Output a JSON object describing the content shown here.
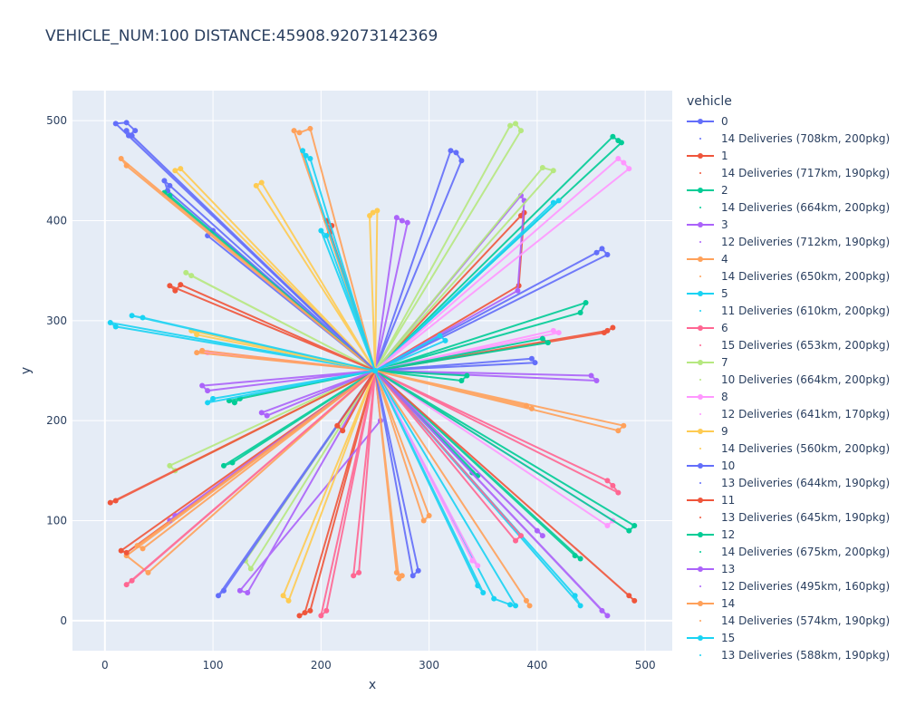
{
  "chart_data": {
    "type": "line",
    "title": "VEHICLE_NUM:100 DISTANCE:45908.92073142369",
    "xlabel": "x",
    "ylabel": "y",
    "xlim": [
      -30,
      525
    ],
    "ylim": [
      -30,
      530
    ],
    "xticks": [
      0,
      100,
      200,
      300,
      400,
      500
    ],
    "yticks": [
      0,
      100,
      200,
      300,
      400,
      500
    ],
    "depot": [
      250,
      250
    ],
    "legend_title": "vehicle",
    "legend_position": "right",
    "colors": [
      "#636efa",
      "#EF553B",
      "#00cc96",
      "#ab63fa",
      "#FFA15A",
      "#19d3f3",
      "#FF6692",
      "#B6E880",
      "#FF97FF",
      "#FECB52"
    ],
    "series": [
      {
        "name": "0",
        "legend": "14 Deliveries (708km, 200pkg)",
        "color": "#636efa",
        "x": [
          250,
          10,
          20,
          28,
          22,
          250,
          60,
          55,
          58,
          250,
          100,
          95,
          250,
          320,
          325,
          330,
          250
        ],
        "y": [
          250,
          497,
          498,
          490,
          485,
          250,
          435,
          440,
          430,
          250,
          390,
          385,
          250,
          470,
          468,
          460,
          250
        ]
      },
      {
        "name": "1",
        "legend": "14 Deliveries (717km, 190pkg)",
        "color": "#EF553B",
        "x": [
          250,
          185,
          180,
          190,
          250,
          205,
          210,
          208,
          250,
          385,
          388,
          383,
          250,
          465,
          470,
          462,
          250
        ],
        "y": [
          250,
          8,
          5,
          10,
          250,
          400,
          395,
          388,
          250,
          405,
          408,
          335,
          250,
          290,
          293,
          288,
          250
        ]
      },
      {
        "name": "2",
        "legend": "14 Deliveries (664km, 200pkg)",
        "color": "#00cc96",
        "x": [
          250,
          470,
          475,
          478,
          250,
          55,
          60,
          250,
          115,
          120,
          125,
          250,
          445,
          440,
          250,
          440,
          435,
          250
        ],
        "y": [
          250,
          484,
          480,
          478,
          250,
          428,
          425,
          250,
          220,
          218,
          222,
          250,
          318,
          308,
          250,
          62,
          65,
          250
        ]
      },
      {
        "name": "3",
        "legend": "12 Deliveries (712km, 190pkg)",
        "color": "#ab63fa",
        "x": [
          250,
          270,
          275,
          280,
          250,
          385,
          388,
          382,
          250,
          90,
          95,
          250,
          450,
          455,
          250,
          255,
          125,
          132,
          250
        ],
        "y": [
          250,
          403,
          400,
          398,
          250,
          425,
          420,
          330,
          250,
          235,
          230,
          250,
          245,
          240,
          250,
          200,
          30,
          28,
          250
        ]
      },
      {
        "name": "4",
        "legend": "14 Deliveries (650km, 200pkg)",
        "color": "#FFA15A",
        "x": [
          250,
          175,
          180,
          190,
          250,
          15,
          20,
          250,
          270,
          275,
          272,
          250,
          390,
          393,
          250,
          20,
          40,
          250
        ],
        "y": [
          250,
          490,
          488,
          492,
          250,
          462,
          455,
          250,
          48,
          45,
          42,
          250,
          20,
          15,
          250,
          65,
          48,
          250
        ]
      },
      {
        "name": "5",
        "legend": "11 Deliveries (610km, 200pkg)",
        "color": "#19d3f3",
        "x": [
          250,
          183,
          186,
          190,
          250,
          5,
          10,
          250,
          415,
          420,
          250,
          360,
          375,
          380,
          250,
          435,
          440,
          250
        ],
        "y": [
          250,
          470,
          465,
          462,
          250,
          298,
          294,
          250,
          418,
          420,
          250,
          22,
          16,
          15,
          250,
          25,
          15,
          250
        ]
      },
      {
        "name": "6",
        "legend": "15 Deliveries (653km, 200pkg)",
        "color": "#FF6692",
        "x": [
          250,
          205,
          200,
          250,
          230,
          235,
          250,
          465,
          470,
          475,
          250,
          25,
          20,
          250,
          380,
          385,
          250
        ],
        "y": [
          250,
          10,
          5,
          250,
          45,
          48,
          250,
          140,
          135,
          128,
          250,
          40,
          36,
          250,
          80,
          85,
          250
        ]
      },
      {
        "name": "7",
        "legend": "10 Deliveries (664km, 200pkg)",
        "color": "#B6E880",
        "x": [
          250,
          375,
          380,
          385,
          250,
          75,
          80,
          250,
          405,
          415,
          250,
          60,
          65,
          250,
          130,
          135,
          250
        ],
        "y": [
          250,
          495,
          497,
          490,
          250,
          348,
          345,
          250,
          453,
          450,
          250,
          155,
          150,
          250,
          60,
          52,
          250
        ]
      },
      {
        "name": "8",
        "legend": "12 Deliveries (641km, 170pkg)",
        "color": "#FF97FF",
        "x": [
          250,
          475,
          480,
          485,
          250,
          90,
          95,
          250,
          415,
          420,
          250,
          340,
          345,
          250,
          470,
          465,
          250
        ],
        "y": [
          250,
          462,
          458,
          452,
          250,
          270,
          268,
          250,
          290,
          288,
          250,
          60,
          55,
          250,
          100,
          95,
          250
        ]
      },
      {
        "name": "9",
        "legend": "14 Deliveries (560km, 200pkg)",
        "color": "#FECB52",
        "x": [
          250,
          245,
          248,
          252,
          250,
          140,
          145,
          250,
          65,
          70,
          250,
          80,
          85,
          250,
          165,
          170,
          250
        ],
        "y": [
          250,
          405,
          408,
          410,
          250,
          435,
          438,
          250,
          450,
          452,
          250,
          290,
          286,
          250,
          25,
          20,
          250
        ]
      },
      {
        "name": "10",
        "legend": "13 Deliveries (644km, 190pkg)",
        "color": "#636efa",
        "x": [
          250,
          455,
          460,
          465,
          250,
          285,
          290,
          250,
          105,
          110,
          250,
          395,
          398,
          250,
          20,
          25,
          250
        ],
        "y": [
          250,
          368,
          372,
          366,
          250,
          45,
          50,
          250,
          25,
          30,
          250,
          262,
          258,
          250,
          490,
          485,
          250
        ]
      },
      {
        "name": "11",
        "legend": "13 Deliveries (645km, 190pkg)",
        "color": "#EF553B",
        "x": [
          250,
          60,
          65,
          70,
          250,
          485,
          490,
          250,
          15,
          20,
          250,
          220,
          215,
          250,
          10,
          5,
          250
        ],
        "y": [
          250,
          335,
          330,
          336,
          250,
          25,
          20,
          250,
          70,
          68,
          250,
          190,
          195,
          250,
          120,
          118,
          250
        ]
      },
      {
        "name": "12",
        "legend": "14 Deliveries (675km, 200pkg)",
        "color": "#00cc96",
        "x": [
          250,
          490,
          485,
          250,
          410,
          405,
          250,
          345,
          340,
          250,
          110,
          118,
          250,
          330,
          335,
          250
        ],
        "y": [
          250,
          95,
          90,
          250,
          278,
          282,
          250,
          145,
          148,
          250,
          155,
          158,
          250,
          240,
          245,
          250
        ]
      },
      {
        "name": "13",
        "legend": "12 Deliveries (495km, 160pkg)",
        "color": "#ab63fa",
        "x": [
          250,
          145,
          150,
          250,
          460,
          465,
          250,
          400,
          405,
          250,
          60,
          65,
          250
        ],
        "y": [
          250,
          208,
          205,
          250,
          10,
          5,
          250,
          90,
          85,
          250,
          100,
          105,
          250
        ]
      },
      {
        "name": "14",
        "legend": "14 Deliveries (574km, 190pkg)",
        "color": "#FFA15A",
        "x": [
          250,
          480,
          475,
          250,
          295,
          300,
          250,
          90,
          85,
          250,
          390,
          395,
          250,
          30,
          35,
          250
        ],
        "y": [
          250,
          195,
          190,
          250,
          100,
          105,
          250,
          270,
          268,
          250,
          215,
          212,
          250,
          75,
          72,
          250
        ]
      },
      {
        "name": "15",
        "legend": "13 Deliveries (588km, 190pkg)",
        "color": "#19d3f3",
        "x": [
          250,
          25,
          35,
          250,
          310,
          315,
          250,
          200,
          205,
          250,
          95,
          100,
          250,
          345,
          350,
          250
        ],
        "y": [
          250,
          305,
          303,
          250,
          285,
          280,
          250,
          390,
          385,
          250,
          218,
          222,
          250,
          35,
          28,
          250
        ]
      }
    ]
  }
}
